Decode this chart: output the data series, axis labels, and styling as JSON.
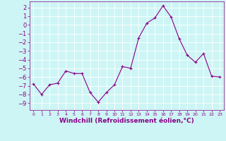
{
  "x": [
    0,
    1,
    2,
    3,
    4,
    5,
    6,
    7,
    8,
    9,
    10,
    11,
    12,
    13,
    14,
    15,
    16,
    17,
    18,
    19,
    20,
    21,
    22,
    23
  ],
  "y": [
    -6.8,
    -8.0,
    -6.9,
    -6.7,
    -5.3,
    -5.6,
    -5.6,
    -7.8,
    -8.9,
    -7.8,
    -6.9,
    -4.8,
    -5.0,
    -1.5,
    0.2,
    0.8,
    2.2,
    0.9,
    -1.6,
    -3.5,
    -4.3,
    -3.3,
    -5.9,
    -6.0
  ],
  "line_color": "#880088",
  "marker": "D",
  "marker_size": 2,
  "bg_color": "#cef5f5",
  "grid_color": "#ffffff",
  "xlabel": "Windchill (Refroidissement éolien,°C)",
  "xlim": [
    -0.5,
    23.5
  ],
  "ylim": [
    -9.8,
    2.7
  ],
  "yticks": [
    2,
    1,
    0,
    -1,
    -2,
    -3,
    -4,
    -5,
    -6,
    -7,
    -8,
    -9
  ],
  "xticks": [
    0,
    1,
    2,
    3,
    4,
    5,
    6,
    7,
    8,
    9,
    10,
    11,
    12,
    13,
    14,
    15,
    16,
    17,
    18,
    19,
    20,
    21,
    22,
    23
  ],
  "tick_color": "#880088",
  "label_color": "#880088",
  "spine_color": "#880088",
  "ytick_fontsize": 6.0,
  "xtick_fontsize": 4.5,
  "xlabel_fontsize": 6.5
}
